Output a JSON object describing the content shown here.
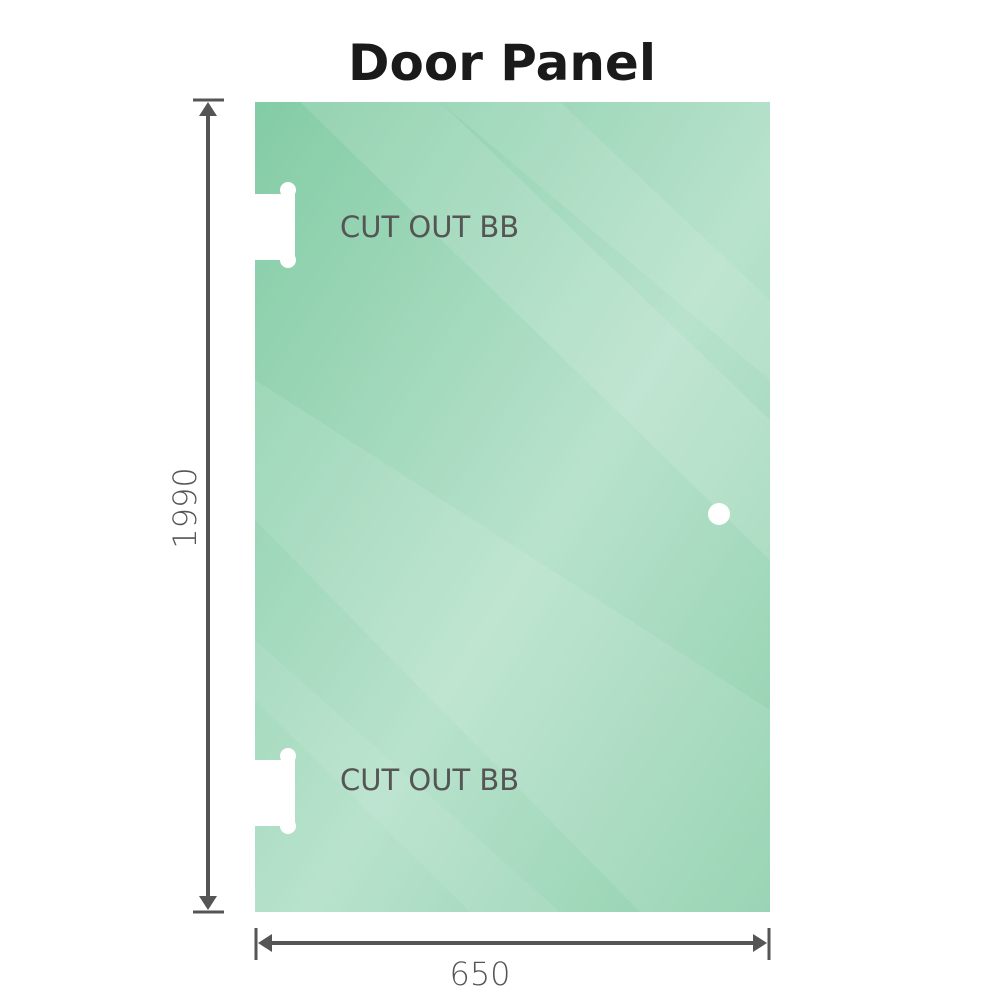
{
  "title": "Door Panel",
  "cutout_label_top": "CUT OUT BB",
  "cutout_label_bottom": "CUT OUT BB",
  "height_dimension": "1990",
  "width_dimension": "650",
  "colors": {
    "glass": "#86cea8",
    "glass_light": "#b9e3cd",
    "dimension_line": "#555555"
  }
}
